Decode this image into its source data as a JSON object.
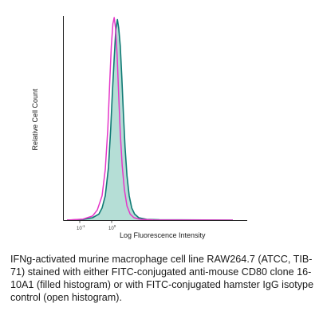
{
  "chart_data": {
    "type": "area",
    "xlabel": "Log Fluorescence Intensity",
    "ylabel": "Relative Cell Count",
    "x_ticks": [
      {
        "base": "10",
        "exp": "-1",
        "value": -1
      },
      {
        "base": "10",
        "exp": "0",
        "value": 0
      }
    ],
    "x_scale": "log",
    "xlim": [
      -1.5,
      4.0
    ],
    "ylim": [
      0,
      100
    ],
    "grid": false,
    "series": [
      {
        "style": "filled",
        "fill_color": "#a8d8cf",
        "line_color": "#0f7a74",
        "points": [
          [
            -1.4,
            0
          ],
          [
            -0.9,
            0.3
          ],
          [
            -0.6,
            1.2
          ],
          [
            -0.4,
            3
          ],
          [
            -0.3,
            6
          ],
          [
            -0.2,
            12
          ],
          [
            -0.1,
            26
          ],
          [
            -0.03,
            45
          ],
          [
            0.02,
            62
          ],
          [
            0.08,
            80
          ],
          [
            0.13,
            94
          ],
          [
            0.18,
            99
          ],
          [
            0.22,
            95
          ],
          [
            0.27,
            86
          ],
          [
            0.32,
            70
          ],
          [
            0.37,
            52
          ],
          [
            0.42,
            36
          ],
          [
            0.48,
            22
          ],
          [
            0.55,
            12
          ],
          [
            0.63,
            6
          ],
          [
            0.72,
            3
          ],
          [
            0.85,
            1.2
          ],
          [
            1.1,
            0.4
          ],
          [
            1.5,
            0.15
          ],
          [
            3.8,
            0
          ]
        ]
      },
      {
        "style": "open",
        "line_color": "#e436c8",
        "points": [
          [
            -1.4,
            0
          ],
          [
            -0.9,
            0.5
          ],
          [
            -0.6,
            2
          ],
          [
            -0.45,
            5
          ],
          [
            -0.3,
            12
          ],
          [
            -0.2,
            25
          ],
          [
            -0.12,
            45
          ],
          [
            -0.06,
            68
          ],
          [
            -0.01,
            86
          ],
          [
            0.04,
            97
          ],
          [
            0.08,
            100
          ],
          [
            0.12,
            95
          ],
          [
            0.17,
            82
          ],
          [
            0.22,
            62
          ],
          [
            0.27,
            43
          ],
          [
            0.33,
            27
          ],
          [
            0.4,
            15
          ],
          [
            0.48,
            7
          ],
          [
            0.58,
            3
          ],
          [
            0.7,
            1.2
          ],
          [
            0.9,
            0.4
          ],
          [
            1.3,
            0.1
          ],
          [
            3.8,
            0
          ]
        ]
      }
    ]
  },
  "caption": "IFNg-activated murine macrophage cell line RAW264.7 (ATCC, TIB-71) stained with either FITC-conjugated anti-mouse CD80 clone 16-10A1 (filled histogram) or with FITC-conjugated hamster IgG isotype control (open histogram)."
}
